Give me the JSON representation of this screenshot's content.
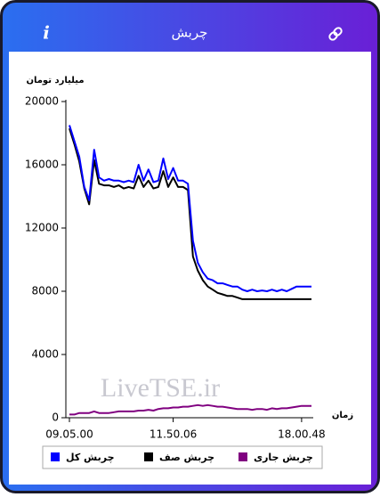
{
  "header": {
    "title": "چربش",
    "info": "i"
  },
  "chart_data": {
    "type": "line",
    "y_label": "میلیارد تومان",
    "x_label": "زمان",
    "watermark": "LiveTSE.ir",
    "categories": [
      "09.05.00",
      null,
      null,
      null,
      null,
      null,
      null,
      null,
      null,
      null,
      null,
      null,
      null,
      null,
      null,
      null,
      null,
      null,
      null,
      null,
      null,
      "11.50.06",
      null,
      null,
      null,
      null,
      null,
      null,
      null,
      null,
      null,
      null,
      null,
      null,
      null,
      null,
      null,
      null,
      null,
      null,
      null,
      null,
      null,
      null,
      null,
      null,
      null,
      "18.00.48",
      null,
      null
    ],
    "ylim": [
      0,
      20000
    ],
    "yticks": [
      0,
      4000,
      8000,
      12000,
      16000,
      20000
    ],
    "series": [
      {
        "name": "چربش کل",
        "color": "#0000ff",
        "values": [
          18500,
          17500,
          16500,
          14600,
          13750,
          16950,
          15200,
          15000,
          15100,
          15000,
          15000,
          14900,
          15000,
          14900,
          16000,
          15000,
          15700,
          14900,
          15000,
          16400,
          15100,
          15800,
          15000,
          15000,
          14800,
          11200,
          9800,
          9200,
          8800,
          8700,
          8500,
          8500,
          8400,
          8300,
          8300,
          8100,
          8000,
          8100,
          8000,
          8050,
          8000,
          8100,
          8000,
          8100,
          8000,
          8150,
          8300,
          8300,
          8300,
          8300
        ]
      },
      {
        "name": "چربش صف",
        "color": "#000000",
        "values": [
          18300,
          17300,
          16200,
          14500,
          13500,
          16300,
          14800,
          14700,
          14700,
          14600,
          14700,
          14500,
          14600,
          14500,
          15300,
          14600,
          15000,
          14500,
          14600,
          15600,
          14600,
          15200,
          14600,
          14600,
          14400,
          10200,
          9300,
          8700,
          8300,
          8100,
          7900,
          7800,
          7700,
          7700,
          7600,
          7500,
          7500,
          7500,
          7500,
          7500,
          7500,
          7500,
          7500,
          7500,
          7500,
          7500,
          7500,
          7500,
          7500,
          7500
        ]
      },
      {
        "name": "چربش جاری",
        "color": "#800080",
        "values": [
          200,
          200,
          300,
          300,
          300,
          400,
          300,
          300,
          300,
          350,
          400,
          400,
          400,
          400,
          450,
          450,
          500,
          450,
          550,
          600,
          600,
          650,
          650,
          700,
          700,
          750,
          800,
          750,
          800,
          750,
          700,
          700,
          650,
          600,
          550,
          550,
          550,
          500,
          550,
          550,
          500,
          600,
          550,
          600,
          600,
          650,
          700,
          750,
          750,
          750
        ]
      }
    ]
  }
}
